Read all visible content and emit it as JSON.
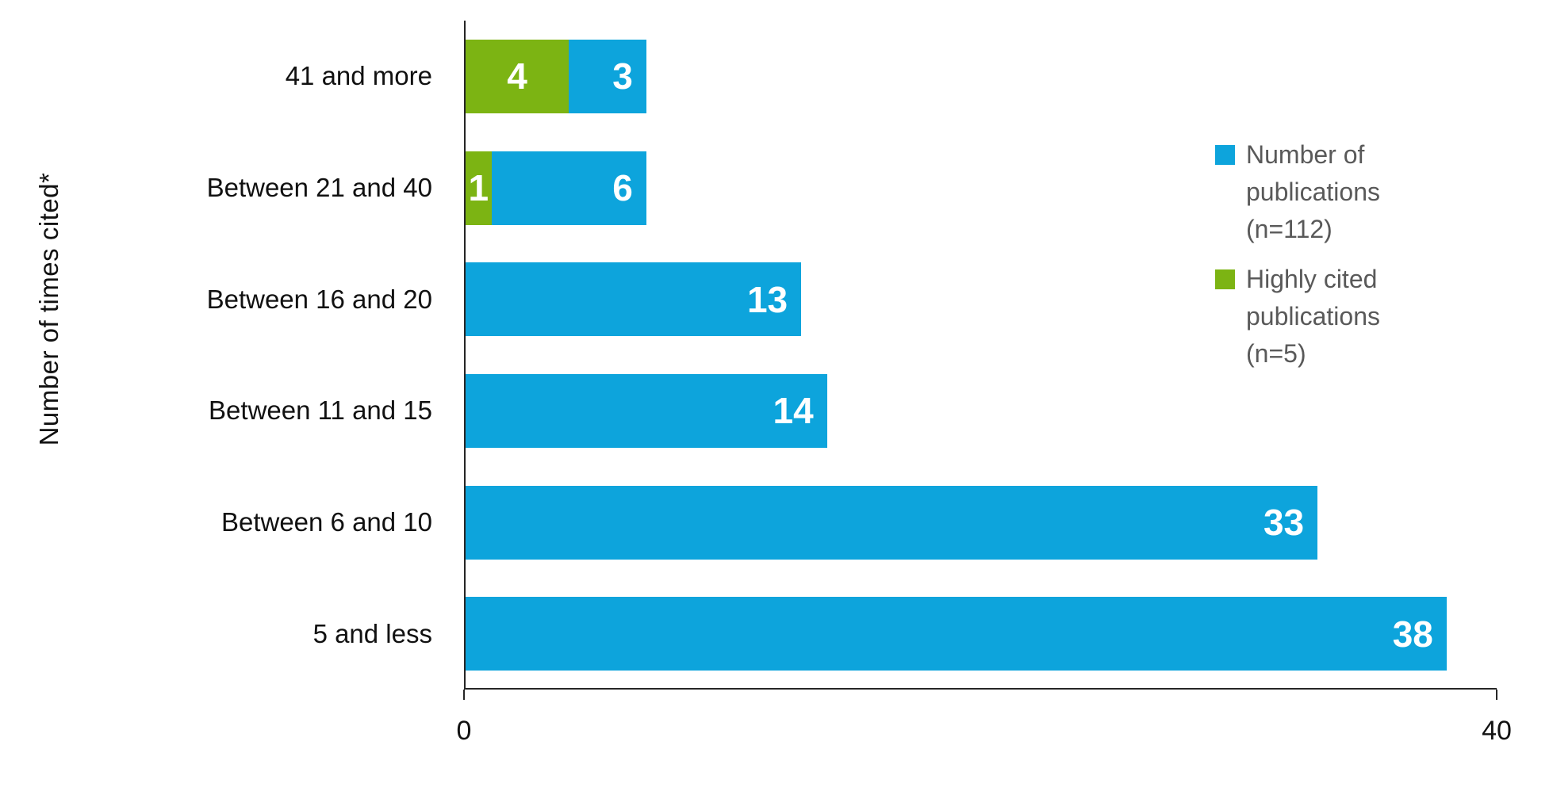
{
  "chart_data": {
    "type": "bar",
    "orientation": "horizontal",
    "stacked": true,
    "title": "",
    "xlabel": "",
    "ylabel": "Number of times cited*",
    "xlim": [
      0,
      40
    ],
    "x_ticks": [
      0,
      40
    ],
    "grid": false,
    "legend_position": "right",
    "categories": [
      "41 and more",
      "Between 21 and 40",
      "Between 16 and 20",
      "Between 11 and 15",
      "Between 6 and 10",
      "5 and less"
    ],
    "series": [
      {
        "name": "Highly cited publications (n=5)",
        "color": "#7cb413",
        "label_color": "#ffffff",
        "label_position": "center",
        "values": [
          4,
          1,
          0,
          0,
          0,
          0
        ]
      },
      {
        "name": "Number of publications (n=112)",
        "color": "#0da4dc",
        "label_color": "#ffffff",
        "label_position": "inside-end",
        "values": [
          3,
          6,
          13,
          14,
          33,
          38
        ]
      }
    ],
    "legend_entries": [
      {
        "label": "Number of publications (n=112)",
        "color": "#0da4dc"
      },
      {
        "label": "Highly cited publications (n=5)",
        "color": "#7cb413"
      }
    ],
    "colors": {
      "axis": "#262626",
      "text": "#111111",
      "legend_text": "#595959",
      "background": "#ffffff"
    }
  }
}
